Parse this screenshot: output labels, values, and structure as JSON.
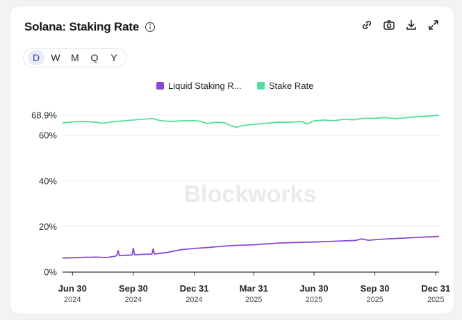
{
  "header": {
    "title": "Solana: Staking Rate",
    "icons": [
      "info-icon",
      "link-icon",
      "camera-icon",
      "download-icon",
      "expand-icon"
    ]
  },
  "periods": {
    "options": [
      "D",
      "W",
      "M",
      "Q",
      "Y"
    ],
    "selected": "D"
  },
  "watermark": "Blockworks",
  "colors": {
    "liquid": "#8b46d9",
    "stake": "#4fe09b",
    "grid": "#eceef1",
    "axis": "#333333"
  },
  "chart_data": {
    "type": "line",
    "title": "Solana: Staking Rate",
    "xlabel": "",
    "ylabel": "",
    "x_range": [
      "2024-06-15",
      "2026-01-05"
    ],
    "ylim": [
      0,
      68.9
    ],
    "y_ticks": [
      {
        "value": 0,
        "label": "0%"
      },
      {
        "value": 20,
        "label": "20%"
      },
      {
        "value": 40,
        "label": "40%"
      },
      {
        "value": 60,
        "label": "60%"
      },
      {
        "value": 68.9,
        "label": "68.9%"
      }
    ],
    "x_ticks": [
      {
        "date": "2024-06-30",
        "label": "Jun 30",
        "year": "2024"
      },
      {
        "date": "2024-09-30",
        "label": "Sep 30",
        "year": "2024"
      },
      {
        "date": "2024-12-31",
        "label": "Dec 31",
        "year": "2024"
      },
      {
        "date": "2025-03-31",
        "label": "Mar 31",
        "year": "2025"
      },
      {
        "date": "2025-06-30",
        "label": "Jun 30",
        "year": "2025"
      },
      {
        "date": "2025-09-30",
        "label": "Sep 30",
        "year": "2025"
      },
      {
        "date": "2025-12-31",
        "label": "Dec 31",
        "year": "2025"
      }
    ],
    "legend": "top-center",
    "series": [
      {
        "name": "Liquid Staking R...",
        "color": "#8b46d9",
        "points": [
          [
            "2024-06-15",
            6.2
          ],
          [
            "2024-07-01",
            6.3
          ],
          [
            "2024-07-20",
            6.5
          ],
          [
            "2024-08-05",
            6.6
          ],
          [
            "2024-08-20",
            6.4
          ],
          [
            "2024-09-01",
            6.9
          ],
          [
            "2024-09-05",
            7.2
          ],
          [
            "2024-09-07",
            9.5
          ],
          [
            "2024-09-09",
            7.2
          ],
          [
            "2024-09-20",
            7.4
          ],
          [
            "2024-09-28",
            7.5
          ],
          [
            "2024-09-30",
            10.5
          ],
          [
            "2024-10-02",
            7.6
          ],
          [
            "2024-10-15",
            7.8
          ],
          [
            "2024-10-28",
            7.9
          ],
          [
            "2024-10-30",
            10.2
          ],
          [
            "2024-11-01",
            8.0
          ],
          [
            "2024-11-20",
            8.6
          ],
          [
            "2024-12-10",
            9.8
          ],
          [
            "2024-12-31",
            10.4
          ],
          [
            "2025-01-20",
            10.8
          ],
          [
            "2025-02-10",
            11.3
          ],
          [
            "2025-03-01",
            11.7
          ],
          [
            "2025-03-31",
            12.0
          ],
          [
            "2025-04-20",
            12.4
          ],
          [
            "2025-05-10",
            12.8
          ],
          [
            "2025-06-01",
            13.0
          ],
          [
            "2025-06-30",
            13.2
          ],
          [
            "2025-07-20",
            13.4
          ],
          [
            "2025-08-10",
            13.7
          ],
          [
            "2025-09-01",
            13.9
          ],
          [
            "2025-09-10",
            14.6
          ],
          [
            "2025-09-20",
            14.0
          ],
          [
            "2025-09-30",
            14.2
          ],
          [
            "2025-10-20",
            14.6
          ],
          [
            "2025-11-10",
            14.9
          ],
          [
            "2025-12-01",
            15.2
          ],
          [
            "2025-12-31",
            15.6
          ],
          [
            "2026-01-05",
            15.7
          ]
        ]
      },
      {
        "name": "Stake Rate",
        "color": "#4fe09b",
        "points": [
          [
            "2024-06-15",
            65.5
          ],
          [
            "2024-07-01",
            66.0
          ],
          [
            "2024-07-20",
            66.2
          ],
          [
            "2024-08-05",
            65.8
          ],
          [
            "2024-08-15",
            65.3
          ],
          [
            "2024-08-25",
            65.9
          ],
          [
            "2024-09-10",
            66.3
          ],
          [
            "2024-09-30",
            66.8
          ],
          [
            "2024-10-15",
            67.2
          ],
          [
            "2024-10-30",
            67.4
          ],
          [
            "2024-11-10",
            66.5
          ],
          [
            "2024-11-25",
            66.2
          ],
          [
            "2024-12-10",
            66.4
          ],
          [
            "2024-12-31",
            66.5
          ],
          [
            "2025-01-10",
            66.2
          ],
          [
            "2025-01-20",
            65.2
          ],
          [
            "2025-02-01",
            65.8
          ],
          [
            "2025-02-15",
            65.6
          ],
          [
            "2025-02-25",
            64.2
          ],
          [
            "2025-03-05",
            63.6
          ],
          [
            "2025-03-15",
            64.4
          ],
          [
            "2025-03-31",
            64.9
          ],
          [
            "2025-04-20",
            65.4
          ],
          [
            "2025-05-10",
            65.9
          ],
          [
            "2025-05-25",
            65.8
          ],
          [
            "2025-06-10",
            66.2
          ],
          [
            "2025-06-20",
            65.1
          ],
          [
            "2025-06-30",
            66.4
          ],
          [
            "2025-07-15",
            66.8
          ],
          [
            "2025-07-30",
            66.5
          ],
          [
            "2025-08-15",
            67.1
          ],
          [
            "2025-08-30",
            66.9
          ],
          [
            "2025-09-10",
            67.5
          ],
          [
            "2025-09-30",
            67.6
          ],
          [
            "2025-10-15",
            67.9
          ],
          [
            "2025-11-01",
            67.4
          ],
          [
            "2025-11-15",
            67.8
          ],
          [
            "2025-12-01",
            68.2
          ],
          [
            "2025-12-20",
            68.5
          ],
          [
            "2025-12-31",
            68.8
          ],
          [
            "2026-01-05",
            68.9
          ]
        ]
      }
    ]
  }
}
